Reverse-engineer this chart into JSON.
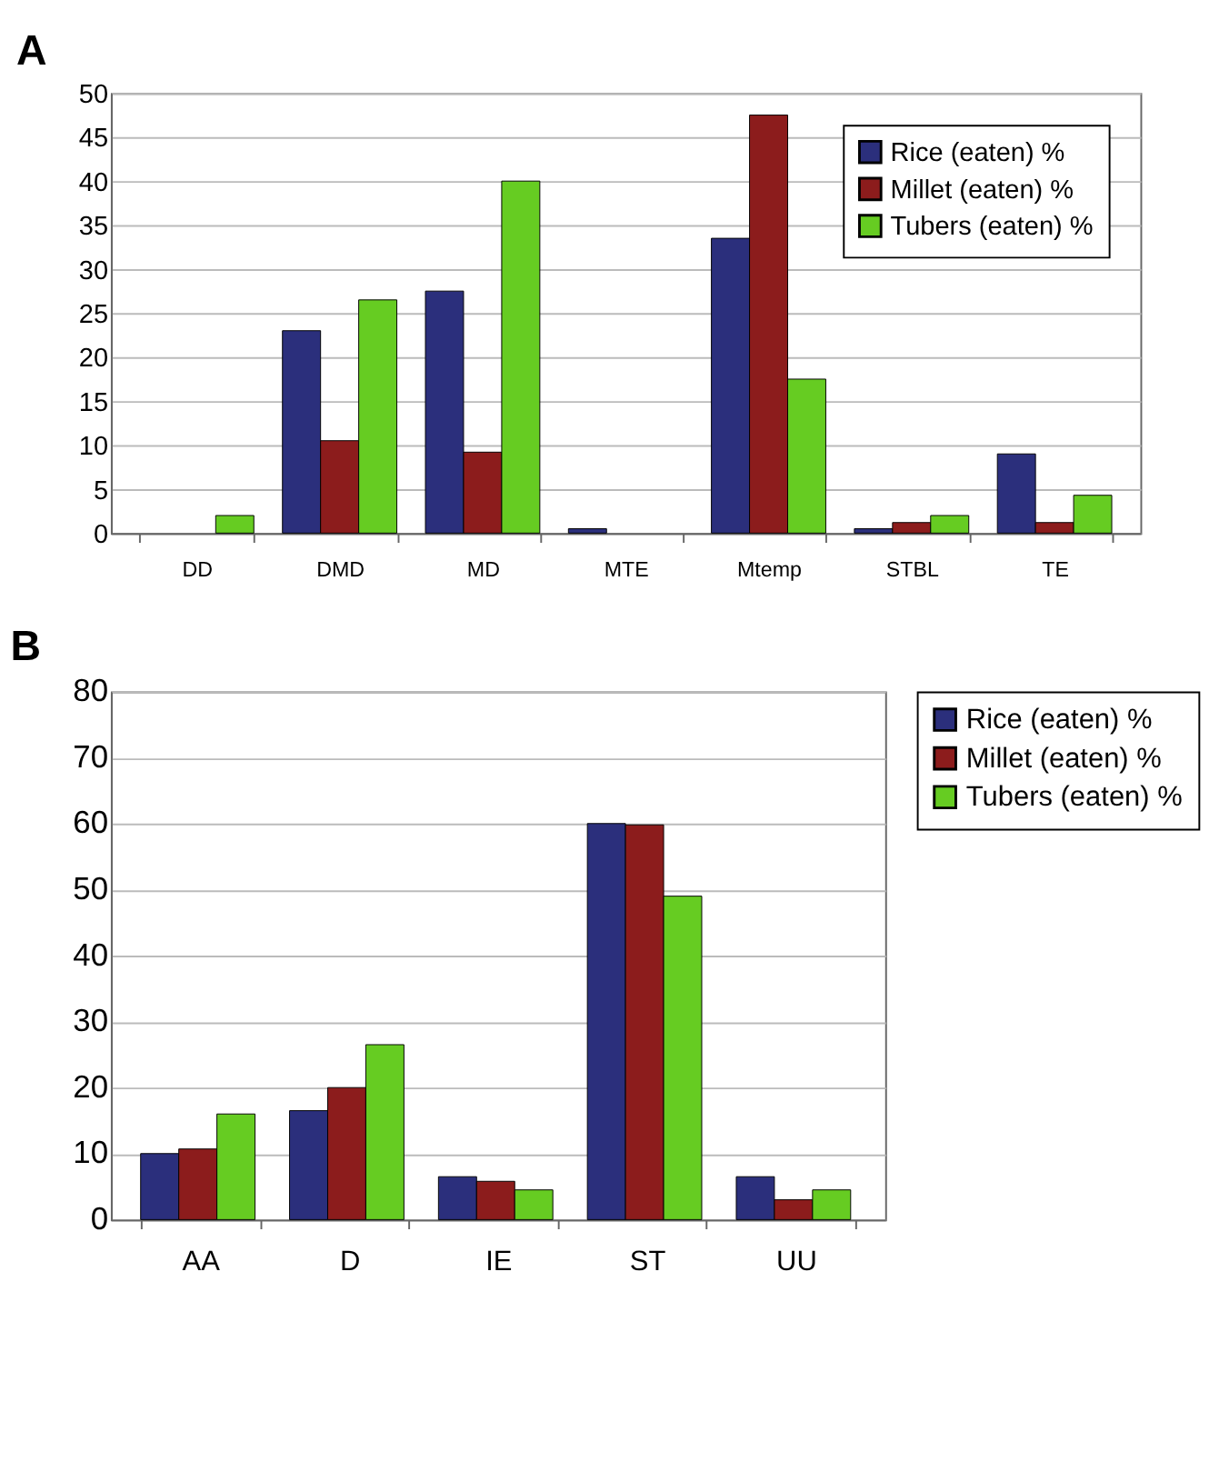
{
  "chart_data": [
    {
      "type": "bar",
      "title": "A",
      "categories": [
        "DD",
        "DMD",
        "MD",
        "MTE",
        "Mtemp",
        "STBL",
        "TE"
      ],
      "series": [
        {
          "name": "Rice (eaten) %",
          "color": "#2b2f7c",
          "values": [
            null,
            23,
            27.5,
            0.5,
            33.5,
            0.5,
            9
          ]
        },
        {
          "name": "Millet (eaten) %",
          "color": "#8c1c1c",
          "values": [
            null,
            10.5,
            9.2,
            null,
            47.5,
            1.2,
            1.2
          ]
        },
        {
          "name": "Tubers (eaten) %",
          "color": "#66cc22",
          "values": [
            2,
            26.5,
            40,
            null,
            17.5,
            2,
            4.3
          ]
        }
      ],
      "ylim": [
        0,
        50
      ],
      "yticks": [
        0,
        5,
        10,
        15,
        20,
        25,
        30,
        35,
        40,
        45,
        50
      ],
      "grid": "y",
      "legend": "top right"
    },
    {
      "type": "bar",
      "title": "B",
      "categories": [
        "AA",
        "D",
        "IE",
        "ST",
        "UU"
      ],
      "series": [
        {
          "name": "Rice (eaten) %",
          "color": "#2b2f7c",
          "values": [
            10,
            16.5,
            6.5,
            60,
            6.5
          ]
        },
        {
          "name": "Millet (eaten) %",
          "color": "#8c1c1c",
          "values": [
            10.7,
            20,
            5.8,
            59.8,
            3
          ]
        },
        {
          "name": "Tubers (eaten) %",
          "color": "#66cc22",
          "values": [
            16,
            26.5,
            4.5,
            49,
            4.5
          ]
        }
      ],
      "ylim": [
        0,
        80
      ],
      "yticks": [
        0,
        10,
        20,
        30,
        40,
        50,
        60,
        70,
        80
      ],
      "grid": "y",
      "legend": "right"
    }
  ]
}
